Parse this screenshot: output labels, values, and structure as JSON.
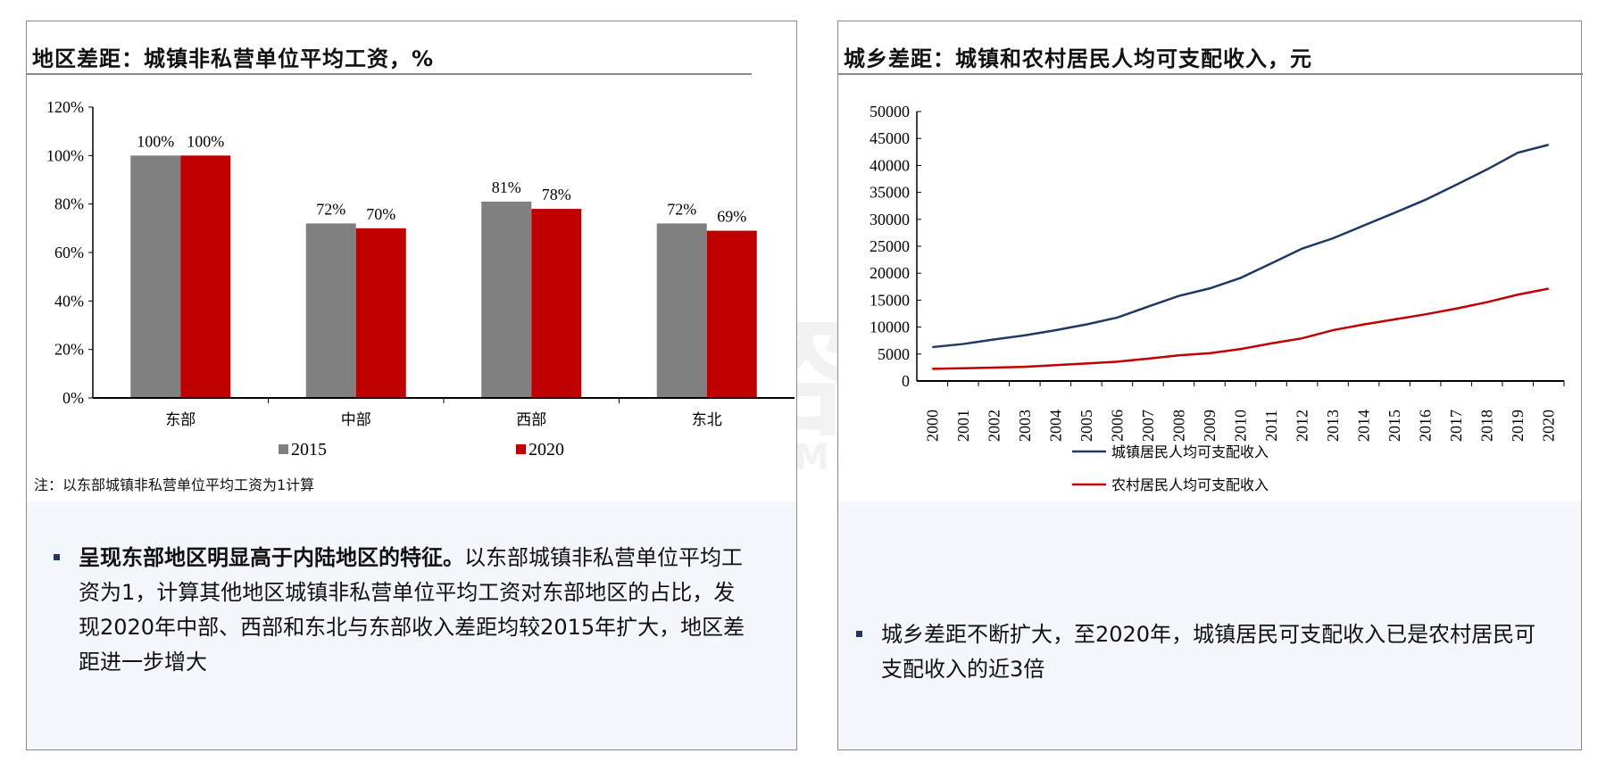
{
  "left_panel": {
    "title": "地区差距：城镇非私营单位平均工资，%",
    "note": "注：以东部城镇非私营单位平均工资为1计算",
    "bullet_bold": "呈现东部地区明显高于内陆地区的特征。",
    "bullet_text": "以东部城镇非私营单位平均工资为1，计算其他地区城镇非私营单位平均工资对东部地区的占比，发现2020年中部、西部和东北与东部收入差距均较2015年扩大，地区差距进一步增大"
  },
  "right_panel": {
    "title": "城乡差距：城镇和农村居民人均可支配收入，元",
    "bullet_text": "城乡差距不断扩大，至2020年，城镇居民可支配收入已是农村居民可支配收入的近3倍"
  },
  "watermark": {
    "logo": "MP中大咨询集团",
    "sub": "MANAGEMENT PROFESSIONAL GROUP"
  },
  "chart_data": [
    {
      "type": "bar",
      "categories": [
        "东部",
        "中部",
        "西部",
        "东北"
      ],
      "series": [
        {
          "name": "2015",
          "values": [
            100,
            72,
            81,
            72
          ],
          "labels": [
            "100%",
            "72%",
            "81%",
            "72%"
          ],
          "color": "#808080"
        },
        {
          "name": "2020",
          "values": [
            100,
            70,
            78,
            69
          ],
          "labels": [
            "100%",
            "70%",
            "78%",
            "69%"
          ],
          "color": "#c00000"
        }
      ],
      "ylim": [
        0,
        120
      ],
      "yticks": [
        "0%",
        "20%",
        "40%",
        "60%",
        "80%",
        "100%",
        "120%"
      ],
      "legend": "bottom"
    },
    {
      "type": "line",
      "x": [
        "2000",
        "2001",
        "2002",
        "2003",
        "2004",
        "2005",
        "2006",
        "2007",
        "2008",
        "2009",
        "2010",
        "2011",
        "2012",
        "2013",
        "2014",
        "2015",
        "2016",
        "2017",
        "2018",
        "2019",
        "2020"
      ],
      "series": [
        {
          "name": "城镇居民人均可支配收入",
          "color": "#1f3864",
          "values": [
            6280,
            6860,
            7703,
            8472,
            9422,
            10493,
            11759,
            13786,
            15781,
            17175,
            19109,
            21810,
            24565,
            26467,
            28844,
            31195,
            33616,
            36396,
            39251,
            42359,
            43834
          ]
        },
        {
          "name": "农村居民人均可支配收入",
          "color": "#c00000",
          "values": [
            2253,
            2366,
            2476,
            2622,
            2936,
            3255,
            3587,
            4140,
            4761,
            5153,
            5919,
            6977,
            7917,
            9430,
            10489,
            11422,
            12363,
            13432,
            14617,
            16021,
            17131
          ]
        }
      ],
      "ylim": [
        0,
        50000
      ],
      "yticks": [
        "0",
        "5000",
        "10000",
        "15000",
        "20000",
        "25000",
        "30000",
        "35000",
        "40000",
        "45000",
        "50000"
      ],
      "legend": "bottom"
    }
  ]
}
